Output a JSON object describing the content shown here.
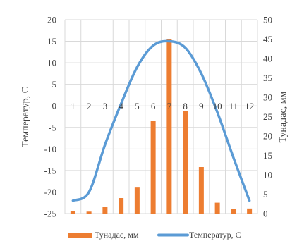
{
  "chart_data": {
    "type": "bar+line",
    "categories": [
      "1",
      "2",
      "3",
      "4",
      "5",
      "6",
      "7",
      "8",
      "9",
      "10",
      "11",
      "12"
    ],
    "series": [
      {
        "name": "Тунадас, мм",
        "kind": "bar",
        "axis": "right",
        "color": "#ED7D31",
        "values": [
          0.7,
          0.5,
          1.7,
          4.0,
          6.7,
          24.0,
          45.0,
          26.5,
          12.0,
          2.8,
          1.1,
          1.3
        ]
      },
      {
        "name": "Температур, С",
        "kind": "line",
        "axis": "left",
        "color": "#5B9BD5",
        "values": [
          -22.0,
          -20.0,
          -9.0,
          0.5,
          9.0,
          14.0,
          15.0,
          13.5,
          7.5,
          -1.5,
          -12.0,
          -22.0
        ]
      }
    ],
    "ylabel_left": "Температур, С",
    "ylabel_right": "Тунадас, мм",
    "ylim_left": [
      -25,
      20
    ],
    "ylim_right": [
      0,
      50
    ],
    "yticks_left": [
      "20",
      "15",
      "10",
      "5",
      "0",
      "-5",
      "-10",
      "-15",
      "-20",
      "-25"
    ],
    "yticks_right": [
      "50",
      "45",
      "40",
      "35",
      "30",
      "25",
      "20",
      "15",
      "10",
      "5",
      "0"
    ],
    "grid": true,
    "legend_position": "bottom"
  }
}
